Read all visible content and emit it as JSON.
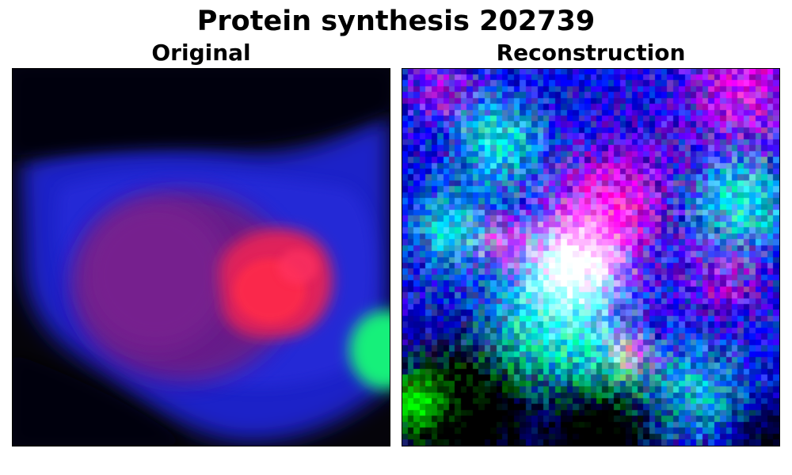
{
  "figure": {
    "title": "Protein synthesis 202739"
  },
  "panels": [
    {
      "title": "Original"
    },
    {
      "title": "Reconstruction"
    }
  ],
  "colors": {
    "background": "#ffffff",
    "original_cytoplasm": "#1a1fd6",
    "original_nucleus": "#7a1f8c",
    "original_nucleolus": "#ff2a4a",
    "original_green_blob": "#1cff6a",
    "recon_cyan": "#1ff2ff",
    "recon_blue": "#0a10ff",
    "recon_magenta": "#ff1aff",
    "recon_white": "#ffffff",
    "recon_red": "#ff1a1a",
    "recon_green": "#1aff1a"
  }
}
